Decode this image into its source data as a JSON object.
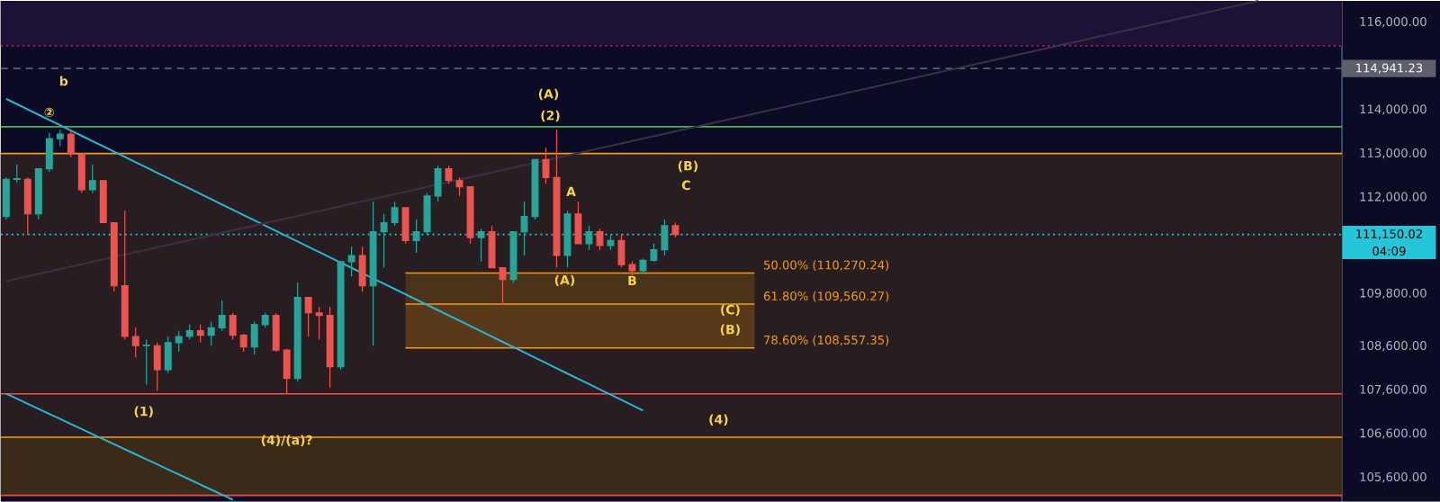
{
  "chart_data": {
    "type": "candlestick",
    "categories": [
      null,
      null,
      null,
      null,
      null,
      null,
      null,
      null,
      null,
      null,
      null,
      null,
      null,
      null,
      null,
      null,
      null,
      null,
      null,
      null,
      null,
      null,
      null,
      null,
      null,
      null,
      null,
      null,
      null,
      null,
      null,
      null,
      null,
      null,
      null,
      null,
      null,
      null,
      null,
      null,
      null,
      null,
      null,
      null,
      null,
      null,
      null,
      null,
      null,
      null,
      null,
      null,
      null,
      null,
      null,
      null,
      null,
      null,
      null,
      null,
      null,
      null,
      null,
      null,
      null,
      null,
      null,
      null,
      null,
      null,
      null,
      null,
      null,
      null,
      null,
      null,
      null,
      null,
      null,
      null,
      null,
      null,
      null,
      null,
      null,
      null,
      null,
      null,
      null,
      null,
      null,
      null,
      null,
      null,
      null,
      null,
      null,
      null,
      null,
      null,
      null,
      null,
      null,
      null,
      null,
      null,
      null,
      null,
      null,
      null,
      null,
      null,
      null,
      null,
      null,
      null,
      null,
      null,
      null,
      null,
      null,
      null,
      null,
      null
    ],
    "ohlc": [
      [
        111560,
        112450,
        111490,
        112410
      ],
      [
        112410,
        112750,
        112340,
        112410
      ],
      [
        112410,
        112450,
        111140,
        111620
      ],
      [
        111620,
        112650,
        111490,
        112650
      ],
      [
        112650,
        113470,
        112580,
        113340
      ],
      [
        113340,
        113540,
        113160,
        113440
      ],
      [
        113440,
        113540,
        112920,
        112990
      ],
      [
        112990,
        112990,
        112100,
        112170
      ],
      [
        112170,
        112750,
        112100,
        112380
      ],
      [
        112380,
        112380,
        111420,
        111420
      ],
      [
        111420,
        111420,
        109840,
        109980
      ],
      [
        109980,
        111690,
        108750,
        108820
      ],
      [
        108820,
        109020,
        108340,
        108610
      ],
      [
        108610,
        108750,
        107720,
        108610
      ],
      [
        108610,
        108680,
        107580,
        108060
      ],
      [
        108060,
        108820,
        107990,
        108680
      ],
      [
        108680,
        108950,
        108470,
        108820
      ],
      [
        108820,
        109090,
        108750,
        108950
      ],
      [
        108950,
        109090,
        108680,
        108850
      ],
      [
        108850,
        109160,
        108610,
        109020
      ],
      [
        109020,
        109640,
        108950,
        109300
      ],
      [
        109300,
        109360,
        108750,
        108850
      ],
      [
        108850,
        108880,
        108470,
        108580
      ],
      [
        108580,
        109160,
        108410,
        109090
      ],
      [
        109090,
        109360,
        109020,
        109300
      ],
      [
        109300,
        109360,
        108470,
        108510
      ],
      [
        108510,
        108540,
        107520,
        107860
      ],
      [
        107860,
        110050,
        107790,
        109710
      ],
      [
        109710,
        109710,
        108820,
        109360
      ],
      [
        109360,
        109500,
        108750,
        109300
      ],
      [
        109300,
        109500,
        107650,
        108130
      ],
      [
        108130,
        110530,
        108060,
        110530
      ],
      [
        110530,
        110870,
        110190,
        110670
      ],
      [
        110670,
        110870,
        109840,
        109980
      ],
      [
        109980,
        111900,
        108610,
        111210
      ],
      [
        111210,
        111620,
        110390,
        111420
      ],
      [
        111420,
        111900,
        111350,
        111760
      ],
      [
        111760,
        111760,
        110940,
        111010
      ],
      [
        111010,
        111490,
        110730,
        111210
      ],
      [
        111210,
        112100,
        111140,
        112030
      ],
      [
        112030,
        112720,
        111900,
        112650
      ],
      [
        112650,
        112720,
        112310,
        112380
      ],
      [
        112380,
        112450,
        112030,
        112240
      ],
      [
        112240,
        112240,
        110940,
        111080
      ],
      [
        111080,
        111280,
        110530,
        111210
      ],
      [
        111210,
        111350,
        110390,
        110390
      ],
      [
        110390,
        110390,
        109540,
        110120
      ],
      [
        110120,
        111210,
        110050,
        111210
      ],
      [
        111210,
        111900,
        110670,
        111560
      ],
      [
        111560,
        112860,
        111490,
        112860
      ],
      [
        112860,
        113130,
        112310,
        112450
      ],
      [
        112450,
        113540,
        110390,
        110670
      ],
      [
        110670,
        111690,
        110390,
        111620
      ],
      [
        111620,
        111900,
        110940,
        110940
      ],
      [
        110940,
        111350,
        110800,
        111210
      ],
      [
        111210,
        111280,
        110800,
        110900
      ],
      [
        110900,
        111140,
        110800,
        111010
      ],
      [
        111010,
        111140,
        110390,
        110460
      ],
      [
        110460,
        110530,
        110220,
        110320
      ],
      [
        110320,
        110600,
        110250,
        110560
      ],
      [
        110560,
        110940,
        110530,
        110800
      ],
      [
        110800,
        111490,
        110670,
        111350
      ],
      [
        111350,
        111420,
        111080,
        111150
      ],
      null,
      null,
      null,
      null,
      null,
      null,
      null,
      null,
      null,
      null,
      null,
      null,
      null,
      null,
      null,
      null,
      null,
      null,
      null,
      null,
      null,
      null,
      null,
      null,
      null,
      null,
      null,
      null,
      null,
      null,
      null,
      null,
      null,
      null,
      null,
      null,
      null,
      null,
      null,
      null,
      null,
      null,
      null,
      null,
      null,
      null,
      null,
      null,
      null,
      null,
      null,
      null,
      null,
      null,
      null,
      null,
      null,
      null,
      null,
      null,
      null
    ],
    "ylim": [
      105045,
      116485
    ],
    "yticks": [
      {
        "value": 116000,
        "label": "116,000.00"
      },
      {
        "value": 114000,
        "label": "114,000.00"
      },
      {
        "value": 113000,
        "label": "113,000.00"
      },
      {
        "value": 112000,
        "label": "112,000.00"
      },
      {
        "value": 109800,
        "label": "109,800.00"
      },
      {
        "value": 108600,
        "label": "108,600.00"
      },
      {
        "value": 107600,
        "label": "107,600.00"
      },
      {
        "value": 106600,
        "label": "106,600.00"
      },
      {
        "value": 105600,
        "label": "105,600.00"
      }
    ],
    "tick_labels": "y",
    "series": [
      {
        "type": "line",
        "color": "#29b6d6",
        "values": [
          114248,
          114127,
          114007,
          113886,
          113765,
          113645,
          113524,
          113403,
          113283,
          113162,
          113041,
          112921,
          112800,
          112679,
          112559,
          112438,
          112317,
          112197,
          112076,
          111955,
          111835,
          111714,
          111593,
          111473,
          111352,
          111231,
          111111,
          110990,
          110869,
          110749,
          110628,
          110507,
          110387,
          110266,
          110145,
          110025,
          109904,
          109783,
          109663,
          109542,
          109421,
          109301,
          109180,
          109059,
          108939,
          108818,
          108697,
          108577,
          108456,
          108335,
          108215,
          108094,
          107973,
          107853,
          107732,
          107611,
          107491,
          107370,
          107249,
          107129,
          null,
          null,
          null,
          null,
          null,
          null,
          null,
          null,
          null,
          null,
          null,
          null,
          null,
          null,
          null,
          null,
          null,
          null,
          null,
          null,
          null,
          null,
          null,
          null,
          null,
          null,
          null,
          null,
          null,
          null,
          null,
          null,
          null,
          null,
          null,
          null,
          null,
          null,
          null,
          null,
          null,
          null,
          null,
          null,
          null,
          null,
          null,
          null,
          null,
          null,
          null,
          null,
          null,
          null,
          null,
          null,
          null,
          null,
          null,
          null,
          null,
          null,
          null,
          null
        ]
      },
      {
        "type": "line",
        "color": "#29b6d6",
        "values": [
          107513,
          107398,
          107282,
          107167,
          107052,
          106936,
          106821,
          106706,
          106590,
          106475,
          106360,
          106245,
          106129,
          106014,
          105899,
          105783,
          105668,
          105553,
          105437,
          105322,
          105207,
          105091,
          null,
          null,
          null,
          null,
          null,
          null,
          null,
          null,
          null,
          null,
          null,
          null,
          null,
          null,
          null,
          null,
          null,
          null,
          null,
          null,
          null,
          null,
          null,
          null,
          null,
          null,
          null,
          null,
          null,
          null,
          null,
          null,
          null,
          null,
          null,
          null,
          null,
          null,
          null,
          null,
          null,
          null,
          null,
          null,
          null,
          null,
          null,
          null,
          null,
          null,
          null,
          null,
          null,
          null,
          null,
          null,
          null,
          null,
          null,
          null,
          null,
          null,
          null,
          null,
          null,
          null,
          null,
          null,
          null,
          null,
          null,
          null,
          null,
          null,
          null,
          null,
          null,
          null,
          null,
          null,
          null,
          null,
          null,
          null,
          null,
          null,
          null,
          null,
          null,
          null,
          null,
          null,
          null,
          null,
          null,
          null,
          null,
          null,
          null,
          null,
          null,
          null
        ]
      },
      {
        "type": "line",
        "color": "#3a3242",
        "values": [
          110084,
          110139,
          110194,
          110250,
          110305,
          110360,
          110415,
          110470,
          110525,
          110581,
          110636,
          110691,
          110746,
          110801,
          110857,
          110912,
          110967,
          111022,
          111077,
          111132,
          111188,
          111243,
          111298,
          111353,
          111408,
          111464,
          111519,
          111574,
          111629,
          111684,
          111739,
          111795,
          111850,
          111905,
          111960,
          112015,
          112070,
          112126,
          112181,
          112236,
          112291,
          112346,
          112402,
          112457,
          112512,
          112567,
          112622,
          112677,
          112733,
          112788,
          112843,
          112898,
          112953,
          113009,
          113064,
          113119,
          113174,
          113229,
          113284,
          113340,
          113395,
          113450,
          113505,
          113560,
          113616,
          113671,
          113726,
          113781,
          113836,
          113891,
          113947,
          114002,
          114057,
          114112,
          114167,
          114223,
          114278,
          114333,
          114388,
          114443,
          114498,
          114554,
          114609,
          114664,
          114719,
          114774,
          114830,
          114885,
          114940,
          114995,
          115050,
          115105,
          115161,
          115216,
          115271,
          115326,
          115381,
          115437,
          115492,
          115547,
          115602,
          115657,
          115712,
          115768,
          115823,
          115878,
          115933,
          115988,
          116044,
          116099,
          116154,
          116209,
          116264,
          116320,
          116375,
          116430,
          116485,
          null,
          null,
          null,
          null,
          null,
          null,
          null
        ]
      }
    ],
    "bands": [
      {
        "axis": "y",
        "from": 115460,
        "to": 116485,
        "color": "#1b1235"
      },
      {
        "axis": "y",
        "from": 106520,
        "to": 113000,
        "color": "#281e22"
      },
      {
        "axis": "y",
        "from": 105190,
        "to": 106520,
        "color": "#3b2a17"
      },
      {
        "axis": "y",
        "from": 109560.27,
        "to": 110270.24,
        "color": "#4a3318"
      },
      {
        "axis": "y",
        "from": 108557.35,
        "to": 109560.27,
        "color": "#58391a"
      }
    ],
    "ref_lines": [
      {
        "axis": "y",
        "value": 115460,
        "color": "#c2185b",
        "line_style": "dotted"
      },
      {
        "axis": "y",
        "value": 114941.23,
        "label": "114,941.23",
        "color": "#5d606b",
        "line_style": "dashed"
      },
      {
        "axis": "y",
        "value": 113610,
        "color": "#4caf50"
      },
      {
        "axis": "y",
        "value": 113000,
        "color": "#f39c12"
      },
      {
        "axis": "y",
        "value": 111150.02,
        "label": "111,150.02",
        "color": "#26c6da",
        "line_style": "dotted"
      },
      {
        "axis": "y",
        "value": 110270.24,
        "label": "50.00% (110,270.24)",
        "color": "#f39c12"
      },
      {
        "axis": "y",
        "value": 109560.27,
        "label": "61.80% (109,560.27)",
        "color": "#f39c12"
      },
      {
        "axis": "y",
        "value": 108557.35,
        "label": "78.60% (108,557.35)",
        "color": "#f39c12"
      },
      {
        "axis": "y",
        "value": 107510,
        "color": "#f0504a"
      },
      {
        "axis": "y",
        "value": 106520,
        "color": "#f39c12"
      },
      {
        "axis": "y",
        "value": 105190,
        "color": "#f0504a"
      }
    ],
    "annotations": [
      "b",
      "②",
      "(A)",
      "(2)",
      "(B)",
      "C",
      "A",
      "(A)",
      "B",
      "(C)",
      "(B)",
      "(1)",
      "(4)/(a)?",
      "(4)",
      "04:09"
    ]
  }
}
